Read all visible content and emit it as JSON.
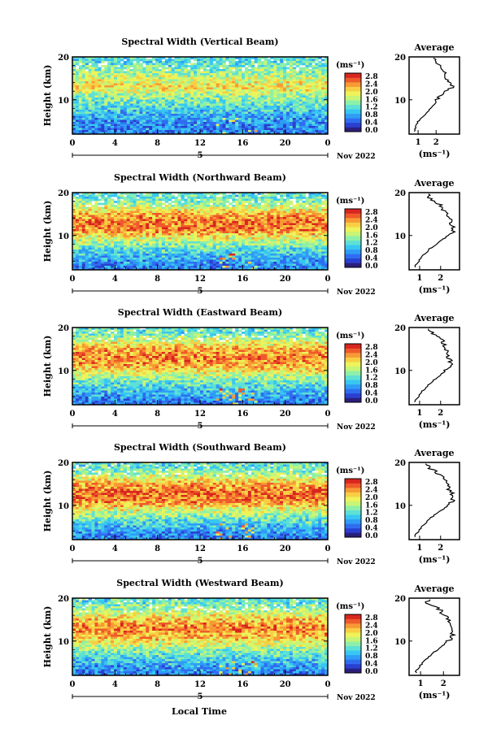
{
  "panels": [
    {
      "title": "Spectral Width (Vertical Beam)",
      "ylabel": "Height (km)",
      "yticks": [
        "20",
        "10"
      ],
      "xticks": [
        "0",
        "4",
        "8",
        "12",
        "16",
        "20",
        "0"
      ],
      "date_mark": "5",
      "month": "Nov 2022",
      "unit": "(ms⁻¹)",
      "cbar_ticks": [
        "2.8",
        "2.4",
        "2.0",
        "1.6",
        "1.2",
        "0.8",
        "0.4",
        "0.0"
      ],
      "avg_title": "Average",
      "avg_yticks": [
        "20",
        "10"
      ],
      "avg_xticks": [
        "1",
        "2"
      ],
      "avg_xlabel": "(ms⁻¹)"
    },
    {
      "title": "Spectral Width (Northward Beam)",
      "ylabel": "Height (km)",
      "yticks": [
        "20",
        "10"
      ],
      "xticks": [
        "0",
        "4",
        "8",
        "12",
        "16",
        "20",
        "0"
      ],
      "date_mark": "5",
      "month": "Nov 2022",
      "unit": "(ms⁻¹)",
      "cbar_ticks": [
        "2.8",
        "2.4",
        "2.0",
        "1.6",
        "1.2",
        "0.8",
        "0.4",
        "0.0"
      ],
      "avg_title": "Average",
      "avg_yticks": [
        "20",
        "10"
      ],
      "avg_xticks": [
        "1",
        "2"
      ],
      "avg_xlabel": "(ms⁻¹)"
    },
    {
      "title": "Spectral Width (Eastward Beam)",
      "ylabel": "Height (km)",
      "yticks": [
        "20",
        "10"
      ],
      "xticks": [
        "0",
        "4",
        "8",
        "12",
        "16",
        "20",
        "0"
      ],
      "date_mark": "5",
      "month": "Nov 2022",
      "unit": "(ms⁻¹)",
      "cbar_ticks": [
        "2.8",
        "2.4",
        "2.0",
        "1.6",
        "1.2",
        "0.8",
        "0.4",
        "0.0"
      ],
      "avg_title": "Average",
      "avg_yticks": [
        "20",
        "10"
      ],
      "avg_xticks": [
        "1",
        "2"
      ],
      "avg_xlabel": "(ms⁻¹)"
    },
    {
      "title": "Spectral Width (Southward Beam)",
      "ylabel": "Height (km)",
      "yticks": [
        "20",
        "10"
      ],
      "xticks": [
        "0",
        "4",
        "8",
        "12",
        "16",
        "20",
        "0"
      ],
      "date_mark": "5",
      "month": "Nov 2022",
      "unit": "(ms⁻¹)",
      "cbar_ticks": [
        "2.8",
        "2.4",
        "2.0",
        "1.6",
        "1.2",
        "0.8",
        "0.4",
        "0.0"
      ],
      "avg_title": "Average",
      "avg_yticks": [
        "20",
        "10"
      ],
      "avg_xticks": [
        "1",
        "2"
      ],
      "avg_xlabel": "(ms⁻¹)"
    },
    {
      "title": "Spectral Width (Westward Beam)",
      "ylabel": "Height (km)",
      "yticks": [
        "20",
        "10"
      ],
      "xticks": [
        "0",
        "4",
        "8",
        "12",
        "16",
        "20",
        "0"
      ],
      "date_mark": "5",
      "month": "Nov 2022",
      "unit": "(ms⁻¹)",
      "cbar_ticks": [
        "2.8",
        "2.4",
        "2.0",
        "1.6",
        "1.2",
        "0.8",
        "0.4",
        "0.0"
      ],
      "avg_title": "Average",
      "avg_yticks": [
        "20",
        "10"
      ],
      "avg_xticks": [
        "1",
        "2"
      ],
      "avg_xlabel": "(ms⁻¹)"
    }
  ],
  "xlabel": "Local Time",
  "colormap": [
    "#2b1f7a",
    "#2a3fd0",
    "#2f6df0",
    "#2f9cf5",
    "#38c6f2",
    "#5ee0d6",
    "#8ef0a8",
    "#c6f577",
    "#eef35a",
    "#f8cf43",
    "#f79a35",
    "#ef5a2a",
    "#d8261f"
  ],
  "chart_data": [
    {
      "type": "heatmap",
      "title": "Spectral Width (Vertical Beam)",
      "xlabel": "",
      "ylabel": "Height (km)",
      "xlim": [
        0,
        24
      ],
      "ylim": [
        2,
        20
      ],
      "color_range": [
        0.0,
        3.0
      ],
      "height_km": [
        3,
        5,
        7,
        9,
        11,
        13,
        15,
        17,
        19
      ],
      "band_mean_width": [
        0.7,
        0.8,
        1.0,
        1.3,
        1.6,
        2.1,
        1.8,
        1.5,
        1.2
      ],
      "average_profile": {
        "height_km": [
          3,
          5,
          7,
          9,
          11,
          13,
          15,
          17,
          19
        ],
        "width": [
          0.8,
          1.0,
          1.5,
          1.9,
          2.2,
          2.9,
          2.6,
          2.4,
          1.9
        ],
        "xlim": [
          0.5,
          3.3
        ]
      }
    },
    {
      "type": "heatmap",
      "title": "Spectral Width (Northward Beam)",
      "xlabel": "",
      "ylabel": "Height (km)",
      "xlim": [
        0,
        24
      ],
      "ylim": [
        2,
        20
      ],
      "color_range": [
        0.0,
        3.0
      ],
      "height_km": [
        3,
        5,
        7,
        9,
        11,
        13,
        15,
        17,
        19
      ],
      "band_mean_width": [
        0.7,
        1.0,
        1.3,
        1.8,
        2.4,
        2.6,
        2.3,
        1.7,
        1.3
      ],
      "average_profile": {
        "height_km": [
          3,
          5,
          7,
          9,
          11,
          13,
          15,
          17,
          19
        ],
        "width": [
          0.8,
          1.1,
          1.5,
          2.1,
          2.6,
          2.5,
          2.3,
          2.0,
          1.4
        ],
        "xlim": [
          0.5,
          2.9
        ]
      }
    },
    {
      "type": "heatmap",
      "title": "Spectral Width (Eastward Beam)",
      "xlabel": "",
      "ylabel": "Height (km)",
      "xlim": [
        0,
        24
      ],
      "ylim": [
        2,
        20
      ],
      "color_range": [
        0.0,
        3.0
      ],
      "height_km": [
        3,
        5,
        7,
        9,
        11,
        13,
        15,
        17,
        19
      ],
      "band_mean_width": [
        0.7,
        1.0,
        1.3,
        1.8,
        2.3,
        2.5,
        2.3,
        1.8,
        1.3
      ],
      "average_profile": {
        "height_km": [
          3,
          5,
          7,
          9,
          11,
          13,
          15,
          17,
          19
        ],
        "width": [
          0.8,
          1.1,
          1.5,
          2.0,
          2.5,
          2.4,
          2.3,
          2.1,
          1.5
        ],
        "xlim": [
          0.5,
          2.9
        ]
      }
    },
    {
      "type": "heatmap",
      "title": "Spectral Width (Southward Beam)",
      "xlabel": "",
      "ylabel": "Height (km)",
      "xlim": [
        0,
        24
      ],
      "ylim": [
        2,
        20
      ],
      "color_range": [
        0.0,
        3.0
      ],
      "height_km": [
        3,
        5,
        7,
        9,
        11,
        13,
        15,
        17,
        19
      ],
      "band_mean_width": [
        0.7,
        1.0,
        1.4,
        1.9,
        2.5,
        2.6,
        2.3,
        1.7,
        1.3
      ],
      "average_profile": {
        "height_km": [
          3,
          5,
          7,
          9,
          11,
          13,
          15,
          17,
          19
        ],
        "width": [
          0.8,
          1.1,
          1.5,
          2.1,
          2.6,
          2.5,
          2.3,
          2.0,
          1.4
        ],
        "xlim": [
          0.5,
          2.9
        ]
      }
    },
    {
      "type": "heatmap",
      "title": "Spectral Width (Westward Beam)",
      "xlabel": "Local Time",
      "ylabel": "Height (km)",
      "xlim": [
        0,
        24
      ],
      "ylim": [
        2,
        20
      ],
      "color_range": [
        0.0,
        3.0
      ],
      "height_km": [
        3,
        5,
        7,
        9,
        11,
        13,
        15,
        17,
        19
      ],
      "band_mean_width": [
        0.7,
        1.0,
        1.3,
        1.8,
        2.3,
        2.5,
        2.2,
        1.7,
        1.3
      ],
      "average_profile": {
        "height_km": [
          3,
          5,
          7,
          9,
          11,
          13,
          15,
          17,
          19
        ],
        "width": [
          0.8,
          1.1,
          1.5,
          2.0,
          2.4,
          2.4,
          2.2,
          1.9,
          1.3
        ],
        "xlim": [
          0.5,
          2.7
        ]
      }
    }
  ]
}
